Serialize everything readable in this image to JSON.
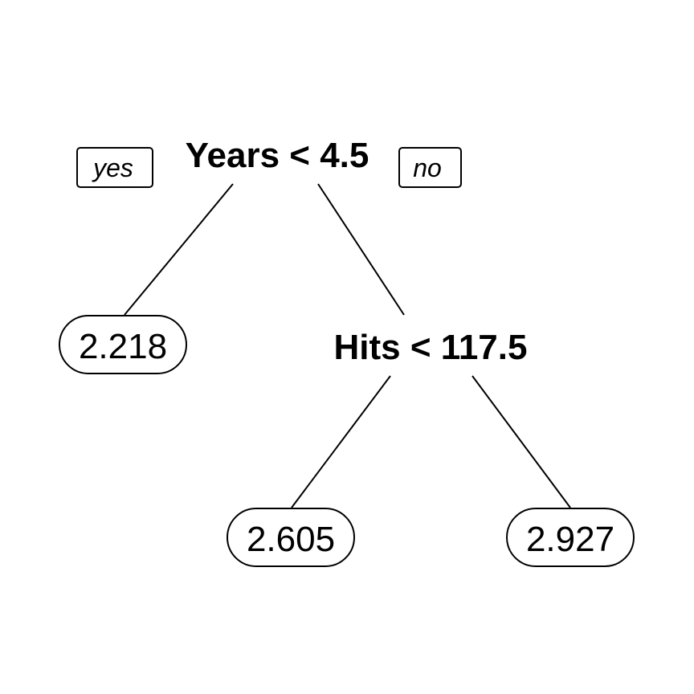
{
  "tree": {
    "root_split": "Years < 4.5",
    "branch_labels": {
      "yes": "yes",
      "no": "no"
    },
    "second_split": "Hits < 117.5",
    "leaves": [
      "2.218",
      "2.605",
      "2.927"
    ]
  },
  "colors": {
    "stroke": "#000000",
    "background": "#ffffff"
  }
}
